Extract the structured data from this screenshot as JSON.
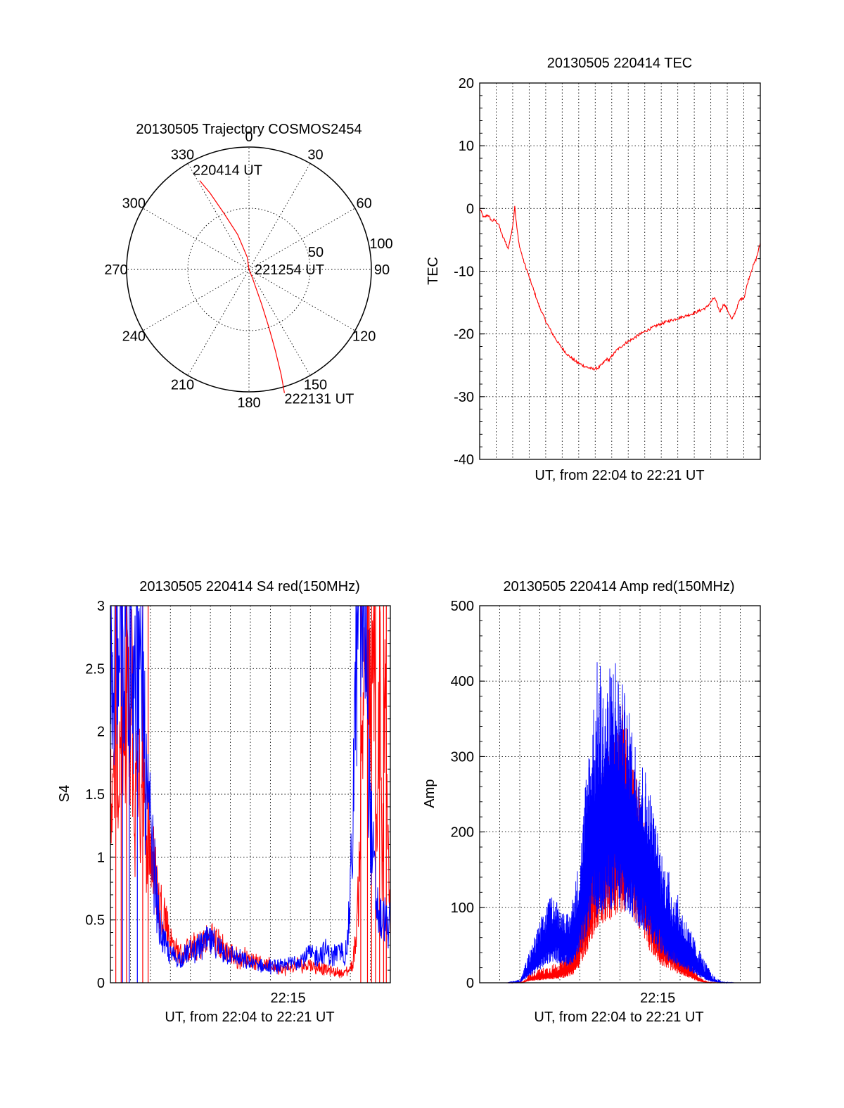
{
  "colors": {
    "red": "#ff0000",
    "blue": "#0000ff",
    "axis": "#000000"
  },
  "chart_data": [
    {
      "type": "polar",
      "title": "20130505 Trajectory COSMOS2454",
      "angle_labels": [
        "0",
        "30",
        "60",
        "90",
        "120",
        "150",
        "180",
        "210",
        "240",
        "270",
        "300",
        "330"
      ],
      "angles_deg": [
        0,
        30,
        60,
        90,
        120,
        150,
        180,
        210,
        240,
        270,
        300,
        330
      ],
      "radius_labels": [
        "50",
        "100"
      ],
      "radius_values": [
        50,
        100
      ],
      "rmax": 100,
      "track": {
        "points": [
          [
            -29,
            83
          ],
          [
            -27,
            70
          ],
          [
            -24,
            50
          ],
          [
            -18,
            30
          ],
          [
            -8,
            10
          ],
          [
            0,
            0
          ],
          [
            158,
            8
          ],
          [
            160,
            30
          ],
          [
            161,
            50
          ],
          [
            162,
            70
          ],
          [
            163,
            90
          ],
          [
            164,
            105
          ]
        ],
        "start_label": "220414 UT",
        "mid_label": "221254 UT",
        "end_label": "222131 UT"
      }
    },
    {
      "type": "line",
      "title": "20130505 220414 TEC",
      "xlabel": "UT, from 22:04 to 22:21 UT",
      "ylabel": "TEC",
      "xlim": [
        0,
        1040
      ],
      "ylim": [
        -40,
        20
      ],
      "yticks": [
        "-40",
        "-30",
        "-20",
        "-10",
        "0",
        "10",
        "20"
      ],
      "xticks": [],
      "series": [
        {
          "name": "TEC",
          "color": "red",
          "x": [
            0,
            15,
            30,
            45,
            55,
            70,
            85,
            95,
            105,
            115,
            125,
            130,
            135,
            145,
            160,
            180,
            200,
            220,
            245,
            270,
            300,
            330,
            360,
            390,
            420,
            440,
            455,
            470,
            480,
            490,
            510,
            540,
            570,
            600,
            630,
            660,
            690,
            720,
            750,
            780,
            810,
            840,
            870,
            890,
            905,
            920,
            935,
            950,
            965,
            980,
            995,
            1010,
            1025,
            1040
          ],
          "y": [
            0,
            -1.5,
            -1,
            -2,
            -1.8,
            -2.5,
            -4.5,
            -5.2,
            -6.5,
            -4.5,
            -2,
            0.5,
            -2,
            -5.5,
            -8,
            -10.5,
            -13,
            -15.5,
            -18,
            -20,
            -22,
            -23.5,
            -24.5,
            -25.2,
            -25.6,
            -25.4,
            -24.8,
            -24,
            -24.2,
            -23.5,
            -22.5,
            -21.5,
            -20.7,
            -19.9,
            -19.2,
            -18.6,
            -18.1,
            -17.7,
            -17.3,
            -16.9,
            -16.4,
            -15.8,
            -14.2,
            -16.5,
            -15.2,
            -16.3,
            -17.8,
            -16.2,
            -14.5,
            -14.2,
            -11.5,
            -9.5,
            -8,
            -5.5
          ]
        }
      ]
    },
    {
      "type": "line",
      "title": "20130505 220414 S4 red(150MHz)",
      "xlabel": "UT, from 22:04 to 22:21 UT",
      "ylabel": "S4",
      "xlim": [
        0,
        1040
      ],
      "ylim": [
        0,
        3
      ],
      "yticks": [
        "0",
        "0.5",
        "1",
        "1.5",
        "2",
        "2.5",
        "3"
      ],
      "xticks": [
        {
          "x": 660,
          "label": "22:15"
        }
      ],
      "series": [
        {
          "name": "red",
          "color": "red",
          "x": [
            0,
            10,
            20,
            30,
            40,
            50,
            60,
            70,
            80,
            90,
            100,
            110,
            120,
            130,
            140,
            150,
            160,
            170,
            180,
            200,
            220,
            240,
            260,
            280,
            300,
            320,
            340,
            360,
            380,
            400,
            420,
            440,
            460,
            480,
            500,
            520,
            540,
            560,
            580,
            600,
            620,
            640,
            660,
            680,
            700,
            720,
            740,
            760,
            780,
            800,
            820,
            840,
            860,
            870,
            880,
            890,
            900,
            910,
            920,
            930,
            940,
            950,
            960,
            970,
            980,
            990,
            1000,
            1010,
            1020,
            1030,
            1040
          ],
          "y": [
            1.9,
            1.2,
            2.3,
            1.5,
            2.2,
            1.4,
            2.8,
            1.6,
            2.2,
            1.1,
            1.9,
            1.3,
            2.0,
            1.1,
            1.2,
            1.0,
            0.9,
            0.8,
            0.6,
            0.55,
            0.35,
            0.25,
            0.22,
            0.24,
            0.26,
            0.28,
            0.3,
            0.33,
            0.35,
            0.3,
            0.26,
            0.23,
            0.2,
            0.18,
            0.2,
            0.16,
            0.18,
            0.15,
            0.13,
            0.13,
            0.12,
            0.1,
            0.11,
            0.12,
            0.14,
            0.13,
            0.15,
            0.12,
            0.12,
            0.1,
            0.09,
            0.08,
            0.08,
            0.07,
            0.09,
            0.1,
            0.15,
            0.3,
            0.6,
            1.4,
            2.3,
            3.0,
            2.4,
            1.8,
            2.9,
            0.8,
            2.6,
            0.5,
            2.9,
            1.2,
            0.4
          ],
          "spikes": [
            -3,
            20,
            40,
            60,
            120,
            140,
            930,
            955,
            970,
            985,
            1000,
            1015,
            1025
          ]
        },
        {
          "name": "blue",
          "color": "blue",
          "x": [
            0,
            10,
            20,
            30,
            40,
            50,
            60,
            70,
            80,
            90,
            100,
            110,
            120,
            130,
            140,
            150,
            160,
            170,
            180,
            200,
            220,
            240,
            260,
            280,
            300,
            320,
            340,
            360,
            380,
            400,
            420,
            440,
            460,
            480,
            500,
            520,
            540,
            560,
            580,
            600,
            620,
            640,
            660,
            680,
            700,
            720,
            740,
            760,
            780,
            800,
            820,
            840,
            860,
            870,
            880,
            890,
            900,
            910,
            920,
            930,
            940,
            950,
            960,
            970,
            980,
            990,
            1000,
            1010,
            1020,
            1030,
            1040
          ],
          "y": [
            2.8,
            1.8,
            3.0,
            2.2,
            3.0,
            2.0,
            3.0,
            2.4,
            3.0,
            2.1,
            3.0,
            2.0,
            2.4,
            1.5,
            1.3,
            1.1,
            0.9,
            0.7,
            0.45,
            0.3,
            0.22,
            0.2,
            0.18,
            0.22,
            0.24,
            0.26,
            0.28,
            0.32,
            0.3,
            0.26,
            0.24,
            0.22,
            0.2,
            0.18,
            0.16,
            0.15,
            0.14,
            0.13,
            0.12,
            0.12,
            0.13,
            0.12,
            0.14,
            0.16,
            0.18,
            0.2,
            0.22,
            0.2,
            0.22,
            0.24,
            0.2,
            0.22,
            0.25,
            0.2,
            0.3,
            0.6,
            1.2,
            2.2,
            3.0,
            3.0,
            2.8,
            3.0,
            1.6,
            1.1,
            0.8,
            0.6,
            0.5,
            0.45,
            0.5,
            0.4,
            0.45
          ],
          "spikes": [
            45,
            70,
            100
          ]
        }
      ]
    },
    {
      "type": "line",
      "title": "20130505 220414 Amp red(150MHz)",
      "xlabel": "UT, from 22:04 to 22:21 UT",
      "ylabel": "Amp",
      "xlim": [
        0,
        1040
      ],
      "ylim": [
        0,
        500
      ],
      "yticks": [
        "0",
        "100",
        "200",
        "300",
        "400",
        "500"
      ],
      "xticks": [
        {
          "x": 660,
          "label": "22:15"
        }
      ],
      "series": [
        {
          "name": "red",
          "color": "red",
          "x": [
            0,
            100,
            160,
            180,
            200,
            230,
            260,
            290,
            320,
            350,
            370,
            390,
            410,
            430,
            450,
            470,
            490,
            510,
            530,
            550,
            570,
            590,
            610,
            630,
            650,
            670,
            690,
            710,
            730,
            750,
            770,
            790,
            810,
            830,
            850,
            900,
            1040
          ],
          "y": [
            0,
            0,
            0,
            5,
            8,
            10,
            12,
            15,
            20,
            30,
            60,
            100,
            140,
            180,
            210,
            230,
            240,
            260,
            270,
            255,
            230,
            200,
            160,
            120,
            90,
            70,
            55,
            45,
            35,
            30,
            20,
            12,
            5,
            2,
            0,
            0,
            0
          ],
          "env_hi": [
            0,
            0,
            2,
            12,
            16,
            20,
            24,
            28,
            35,
            55,
            110,
            180,
            230,
            250,
            280,
            300,
            320,
            360,
            380,
            310,
            290,
            260,
            210,
            160,
            120,
            95,
            75,
            60,
            50,
            42,
            32,
            20,
            10,
            4,
            1,
            0,
            0
          ]
        },
        {
          "name": "blue",
          "color": "blue",
          "x": [
            0,
            100,
            150,
            180,
            210,
            240,
            270,
            300,
            330,
            360,
            380,
            400,
            420,
            440,
            460,
            480,
            500,
            520,
            540,
            560,
            580,
            600,
            620,
            640,
            660,
            680,
            700,
            720,
            740,
            760,
            780,
            800,
            820,
            840,
            860,
            880,
            900,
            940,
            1040
          ],
          "y": [
            0,
            0,
            2,
            20,
            40,
            60,
            80,
            70,
            60,
            90,
            130,
            190,
            230,
            250,
            260,
            270,
            280,
            270,
            250,
            240,
            220,
            200,
            180,
            150,
            120,
            100,
            80,
            70,
            60,
            50,
            40,
            30,
            20,
            10,
            4,
            2,
            0,
            0,
            0
          ],
          "env_hi": [
            0,
            0,
            5,
            40,
            70,
            100,
            120,
            100,
            90,
            150,
            220,
            320,
            380,
            450,
            390,
            420,
            450,
            410,
            380,
            350,
            320,
            300,
            280,
            240,
            200,
            170,
            150,
            130,
            110,
            90,
            70,
            55,
            40,
            25,
            12,
            5,
            2,
            0,
            0
          ]
        }
      ]
    }
  ]
}
